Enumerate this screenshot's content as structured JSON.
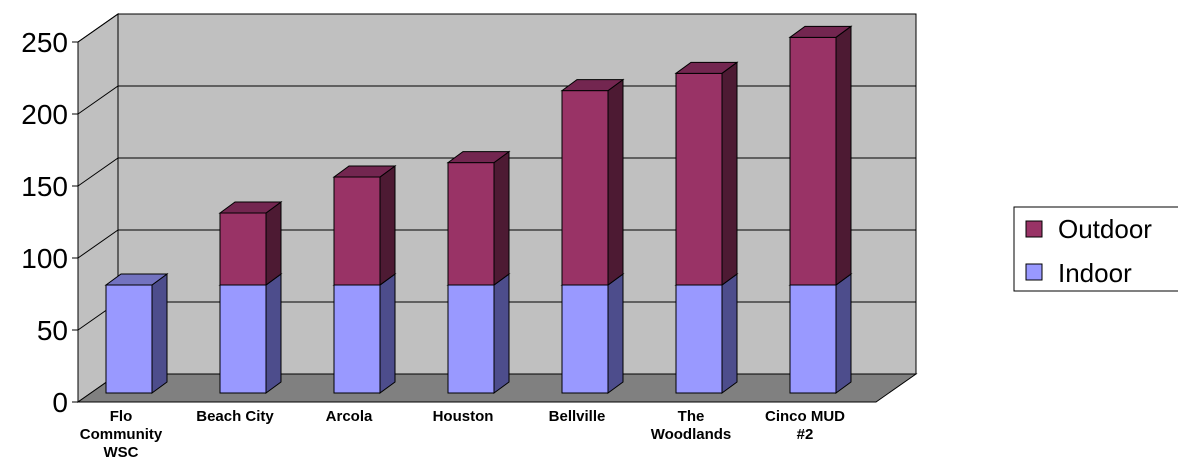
{
  "chart_data": {
    "type": "bar",
    "stacked": true,
    "three_d": true,
    "categories": [
      [
        "Flo",
        "Community",
        "WSC"
      ],
      [
        "Beach City"
      ],
      [
        "Arcola"
      ],
      [
        "Houston"
      ],
      [
        "Bellville"
      ],
      [
        "The",
        "Woodlands"
      ],
      [
        "Cinco MUD",
        "#2"
      ]
    ],
    "series": [
      {
        "name": "Indoor",
        "values": [
          75,
          75,
          75,
          75,
          75,
          75,
          75
        ],
        "color": "#9999ff",
        "side_color": "#4d4d8c",
        "top_color": "#7373c0"
      },
      {
        "name": "Outdoor",
        "values": [
          0,
          50,
          75,
          85,
          135,
          147,
          172
        ],
        "color": "#993366",
        "side_color": "#4d1a33",
        "top_color": "#732650"
      }
    ],
    "ylim": [
      0,
      250
    ],
    "yticks": [
      "0",
      "50",
      "100",
      "150",
      "200",
      "250"
    ],
    "grid": true,
    "legend_position": "right",
    "colors": {
      "wall": "#c0c0c0",
      "floor": "#808080",
      "gridline": "#000000"
    }
  }
}
